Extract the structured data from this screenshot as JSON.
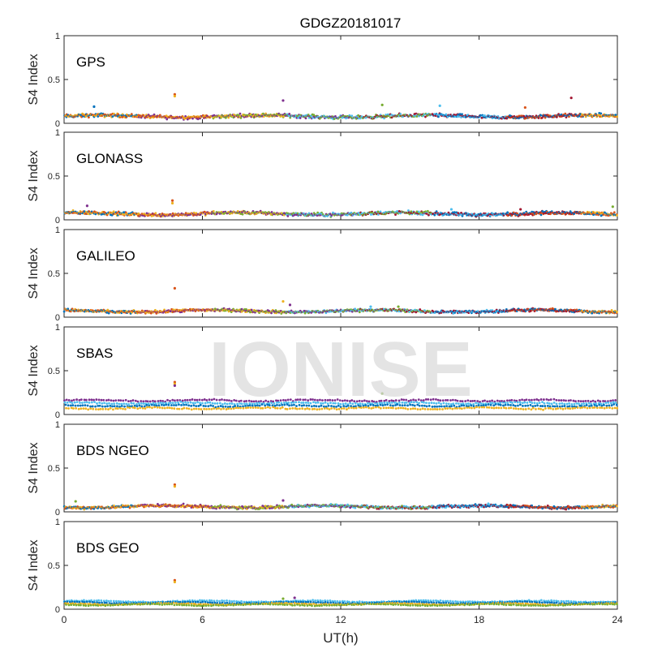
{
  "chart_data": {
    "type": "scatter",
    "title": "GDGZ20181017",
    "xlabel": "UT(h)",
    "xlim": [
      0,
      24
    ],
    "xticks": [
      0,
      6,
      12,
      18,
      24
    ],
    "watermark": "IONISE",
    "series_colors": [
      "#0072BD",
      "#D95319",
      "#EDB120",
      "#7E2F8E",
      "#77AC30",
      "#4DBEEE",
      "#A2142F"
    ],
    "panels": [
      {
        "label": "GPS",
        "ylabel": "S4 Index",
        "ylim": [
          0,
          1
        ],
        "yticks": [
          0,
          0.5,
          1
        ],
        "yticklabels": [
          "0",
          "0.5",
          "1"
        ],
        "baseline_s4": 0.08,
        "spread_s4": 0.03,
        "outliers": [
          [
            4.8,
            0.33
          ],
          [
            4.8,
            0.31
          ],
          [
            9.5,
            0.26
          ],
          [
            13.8,
            0.21
          ],
          [
            16.3,
            0.2
          ],
          [
            22.0,
            0.29
          ],
          [
            1.3,
            0.19
          ],
          [
            20.0,
            0.18
          ]
        ]
      },
      {
        "label": "GLONASS",
        "ylabel": "S4 Index",
        "ylim": [
          0,
          1
        ],
        "yticks": [
          0,
          0.5,
          1
        ],
        "yticklabels": [
          "0",
          "0.5",
          "1"
        ],
        "baseline_s4": 0.07,
        "spread_s4": 0.03,
        "outliers": [
          [
            4.7,
            0.22
          ],
          [
            4.7,
            0.19
          ],
          [
            1.0,
            0.16
          ],
          [
            23.8,
            0.15
          ],
          [
            16.8,
            0.12
          ],
          [
            19.8,
            0.12
          ]
        ]
      },
      {
        "label": "GALILEO",
        "ylabel": "S4 Index",
        "ylim": [
          0,
          1
        ],
        "yticks": [
          0,
          0.5,
          1
        ],
        "yticklabels": [
          "0",
          "0.5",
          "1"
        ],
        "baseline_s4": 0.07,
        "spread_s4": 0.025,
        "outliers": [
          [
            4.8,
            0.33
          ],
          [
            9.5,
            0.18
          ],
          [
            9.8,
            0.14
          ],
          [
            14.5,
            0.12
          ],
          [
            13.3,
            0.12
          ]
        ]
      },
      {
        "label": "SBAS",
        "ylabel": "S4 Index",
        "ylim": [
          0,
          1
        ],
        "yticks": [
          0,
          0.5,
          1
        ],
        "yticklabels": [
          "0",
          "0.5",
          "1"
        ],
        "bands_s4": [
          0.16,
          0.13,
          0.1,
          0.07
        ],
        "spread_s4": 0.012,
        "outliers": [
          [
            4.8,
            0.37
          ],
          [
            4.8,
            0.35
          ],
          [
            4.8,
            0.33
          ],
          [
            13.8,
            0.24
          ]
        ]
      },
      {
        "label": "BDS NGEO",
        "ylabel": "S4 Index",
        "ylim": [
          0,
          1
        ],
        "yticks": [
          0,
          0.5,
          1
        ],
        "yticklabels": [
          "0",
          "0.5",
          "1"
        ],
        "baseline_s4": 0.06,
        "spread_s4": 0.025,
        "outliers": [
          [
            4.8,
            0.31
          ],
          [
            4.8,
            0.29
          ],
          [
            9.5,
            0.13
          ],
          [
            0.5,
            0.12
          ]
        ]
      },
      {
        "label": "BDS GEO",
        "ylabel": "S4 Index",
        "ylim": [
          0,
          1
        ],
        "yticks": [
          0,
          0.5,
          1
        ],
        "yticklabels": [
          "0",
          "0.5",
          "1"
        ],
        "bands_s4": [
          0.09,
          0.075,
          0.06,
          0.05
        ],
        "spread_s4": 0.008,
        "outliers": [
          [
            4.8,
            0.33
          ],
          [
            4.8,
            0.31
          ],
          [
            10.0,
            0.13
          ],
          [
            9.5,
            0.12
          ]
        ]
      }
    ]
  }
}
